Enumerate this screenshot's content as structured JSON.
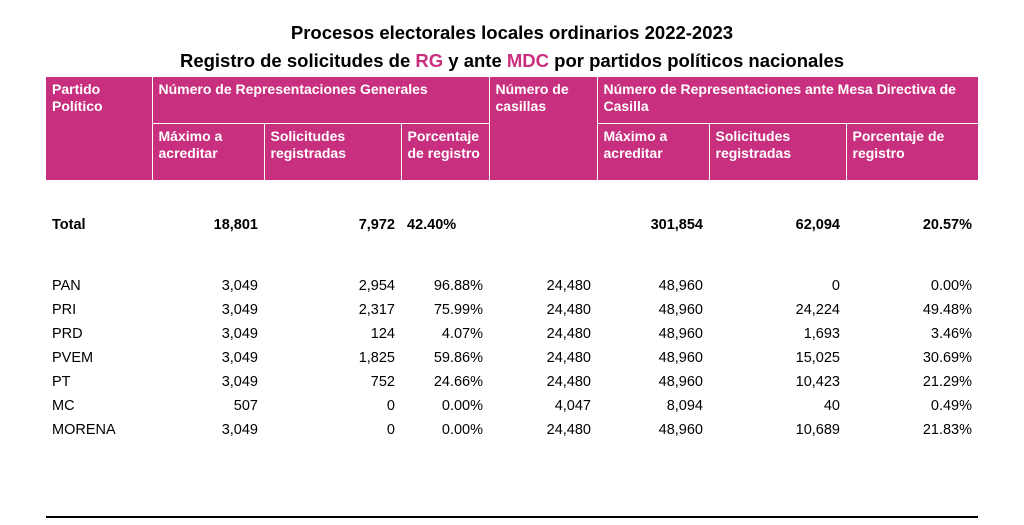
{
  "title": {
    "line1": "Procesos electorales locales ordinarios 2022-2023",
    "line2_pre": "Registro de solicitudes de ",
    "line2_rg": "RG",
    "line2_mid": " y ante ",
    "line2_mdc": "MDC",
    "line2_post": " por partidos políticos nacionales"
  },
  "colors": {
    "accent": "#c8307f"
  },
  "header": {
    "partido": "Partido Político",
    "rg_group": "Número de Representaciones Generales",
    "casillas": "Número de casillas",
    "mdc_group": "Número de Representaciones ante Mesa Directiva de Casilla",
    "maximo": "Máximo a acreditar",
    "solicitudes": "Solicitudes registradas",
    "porcentaje": "Porcentaje de registro"
  },
  "total": {
    "label": "Total",
    "rg_max": "18,801",
    "rg_sol": "7,972",
    "rg_pct": "42.40%",
    "casillas": "",
    "mdc_max": "301,854",
    "mdc_sol": "62,094",
    "mdc_pct": "20.57%"
  },
  "rows": [
    {
      "partido": "PAN",
      "rg_max": "3,049",
      "rg_sol": "2,954",
      "rg_pct": "96.88%",
      "casillas": "24,480",
      "mdc_max": "48,960",
      "mdc_sol": "0",
      "mdc_pct": "0.00%"
    },
    {
      "partido": "PRI",
      "rg_max": "3,049",
      "rg_sol": "2,317",
      "rg_pct": "75.99%",
      "casillas": "24,480",
      "mdc_max": "48,960",
      "mdc_sol": "24,224",
      "mdc_pct": "49.48%"
    },
    {
      "partido": "PRD",
      "rg_max": "3,049",
      "rg_sol": "124",
      "rg_pct": "4.07%",
      "casillas": "24,480",
      "mdc_max": "48,960",
      "mdc_sol": "1,693",
      "mdc_pct": "3.46%"
    },
    {
      "partido": "PVEM",
      "rg_max": "3,049",
      "rg_sol": "1,825",
      "rg_pct": "59.86%",
      "casillas": "24,480",
      "mdc_max": "48,960",
      "mdc_sol": "15,025",
      "mdc_pct": "30.69%"
    },
    {
      "partido": "PT",
      "rg_max": "3,049",
      "rg_sol": "752",
      "rg_pct": "24.66%",
      "casillas": "24,480",
      "mdc_max": "48,960",
      "mdc_sol": "10,423",
      "mdc_pct": "21.29%"
    },
    {
      "partido": "MC",
      "rg_max": "507",
      "rg_sol": "0",
      "rg_pct": "0.00%",
      "casillas": "4,047",
      "mdc_max": "8,094",
      "mdc_sol": "40",
      "mdc_pct": "0.49%"
    },
    {
      "partido": "MORENA",
      "rg_max": "3,049",
      "rg_sol": "0",
      "rg_pct": "0.00%",
      "casillas": "24,480",
      "mdc_max": "48,960",
      "mdc_sol": "10,689",
      "mdc_pct": "21.83%"
    }
  ]
}
